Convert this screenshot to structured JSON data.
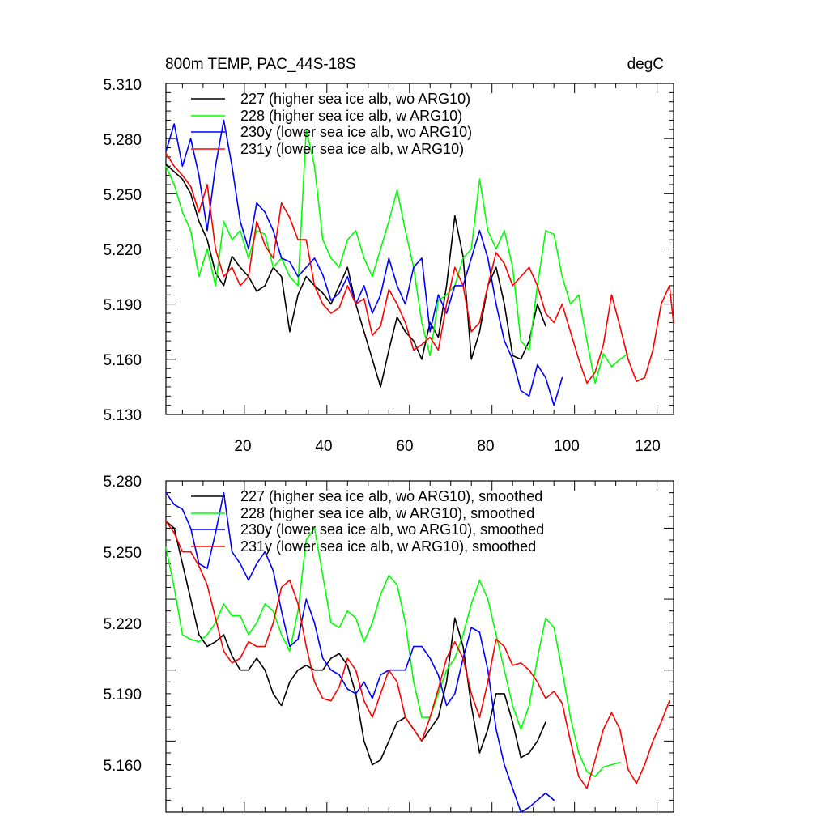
{
  "chart_data": [
    {
      "type": "line",
      "title": "800m TEMP, PAC_44S-18S",
      "units": "degC",
      "xlim": [
        1,
        124
      ],
      "ylim": [
        5.13,
        5.31
      ],
      "xticks": [
        20,
        40,
        60,
        80,
        100,
        120
      ],
      "yticks": [
        "5.310",
        "5.280",
        "5.250",
        "5.220",
        "5.190",
        "5.160",
        "5.130"
      ],
      "series": [
        {
          "name": "227 (higher sea ice alb, wo ARG10)",
          "color": "#000000",
          "x": [
            1,
            3,
            5,
            7,
            9,
            11,
            13,
            15,
            17,
            19,
            21,
            23,
            25,
            27,
            29,
            31,
            33,
            35,
            37,
            39,
            41,
            43,
            45,
            47,
            49,
            51,
            53,
            55,
            57,
            59,
            61,
            63,
            65,
            67,
            69,
            71,
            73,
            75,
            77,
            79,
            81,
            83,
            85,
            87,
            89,
            91,
            93
          ],
          "y": [
            5.266,
            5.262,
            5.258,
            5.25,
            5.235,
            5.225,
            5.207,
            5.2,
            5.216,
            5.21,
            5.205,
            5.197,
            5.2,
            5.21,
            5.205,
            5.175,
            5.195,
            5.205,
            5.2,
            5.196,
            5.19,
            5.2,
            5.21,
            5.19,
            5.175,
            5.16,
            5.145,
            5.165,
            5.183,
            5.175,
            5.17,
            5.16,
            5.18,
            5.172,
            5.2,
            5.238,
            5.216,
            5.16,
            5.175,
            5.2,
            5.21,
            5.19,
            5.162,
            5.16,
            5.17,
            5.19,
            5.178
          ]
        },
        {
          "name": "228 (higher sea ice alb, w ARG10)",
          "color": "#00ff00",
          "x": [
            1,
            3,
            5,
            7,
            9,
            11,
            13,
            15,
            17,
            19,
            21,
            23,
            25,
            27,
            29,
            31,
            33,
            35,
            37,
            39,
            41,
            43,
            45,
            47,
            49,
            51,
            53,
            55,
            57,
            59,
            61,
            63,
            65,
            67,
            69,
            71,
            73,
            75,
            77,
            79,
            81,
            83,
            85,
            87,
            89,
            91,
            93,
            95,
            97,
            99,
            101,
            103,
            105,
            107,
            109,
            111,
            113
          ],
          "y": [
            5.265,
            5.255,
            5.24,
            5.23,
            5.205,
            5.22,
            5.2,
            5.235,
            5.225,
            5.23,
            5.215,
            5.23,
            5.228,
            5.21,
            5.215,
            5.205,
            5.2,
            5.285,
            5.265,
            5.225,
            5.215,
            5.21,
            5.225,
            5.23,
            5.215,
            5.205,
            5.22,
            5.235,
            5.252,
            5.23,
            5.21,
            5.18,
            5.162,
            5.192,
            5.195,
            5.2,
            5.215,
            5.22,
            5.258,
            5.23,
            5.22,
            5.23,
            5.21,
            5.17,
            5.165,
            5.2,
            5.23,
            5.228,
            5.205,
            5.19,
            5.195,
            5.17,
            5.147,
            5.163,
            5.156,
            5.16,
            5.163
          ]
        },
        {
          "name": "230y (lower sea ice alb, wo ARG10)",
          "color": "#0000ff",
          "x": [
            1,
            3,
            5,
            7,
            9,
            11,
            13,
            15,
            17,
            19,
            21,
            23,
            25,
            27,
            29,
            31,
            33,
            35,
            37,
            39,
            41,
            43,
            45,
            47,
            49,
            51,
            53,
            55,
            57,
            59,
            61,
            63,
            65,
            67,
            69,
            71,
            73,
            75,
            77,
            79,
            81,
            83,
            85,
            87,
            89,
            91,
            93,
            95,
            97
          ],
          "y": [
            5.273,
            5.288,
            5.265,
            5.28,
            5.26,
            5.23,
            5.265,
            5.29,
            5.265,
            5.235,
            5.22,
            5.245,
            5.24,
            5.23,
            5.215,
            5.213,
            5.205,
            5.21,
            5.215,
            5.206,
            5.192,
            5.196,
            5.205,
            5.19,
            5.2,
            5.185,
            5.195,
            5.215,
            5.2,
            5.19,
            5.21,
            5.215,
            5.175,
            5.195,
            5.185,
            5.2,
            5.2,
            5.215,
            5.23,
            5.215,
            5.19,
            5.17,
            5.16,
            5.143,
            5.14,
            5.157,
            5.15,
            5.135,
            5.15
          ]
        },
        {
          "name": "231y (lower sea ice alb, w ARG10)",
          "color": "#ff0000",
          "x": [
            1,
            3,
            5,
            7,
            9,
            11,
            13,
            15,
            17,
            19,
            21,
            23,
            25,
            27,
            29,
            31,
            33,
            35,
            37,
            39,
            41,
            43,
            45,
            47,
            49,
            51,
            53,
            55,
            57,
            59,
            61,
            63,
            65,
            67,
            69,
            71,
            73,
            75,
            77,
            79,
            81,
            83,
            85,
            87,
            89,
            91,
            93,
            95,
            97,
            99,
            101,
            103,
            105,
            107,
            109,
            111,
            113,
            115,
            117,
            119,
            121,
            123,
            124
          ],
          "y": [
            5.272,
            5.265,
            5.26,
            5.254,
            5.24,
            5.255,
            5.22,
            5.205,
            5.21,
            5.2,
            5.205,
            5.235,
            5.222,
            5.215,
            5.245,
            5.237,
            5.225,
            5.225,
            5.2,
            5.19,
            5.185,
            5.188,
            5.2,
            5.19,
            5.193,
            5.173,
            5.178,
            5.198,
            5.19,
            5.18,
            5.165,
            5.168,
            5.172,
            5.165,
            5.19,
            5.21,
            5.2,
            5.175,
            5.18,
            5.2,
            5.218,
            5.212,
            5.2,
            5.205,
            5.21,
            5.2,
            5.185,
            5.18,
            5.19,
            5.175,
            5.16,
            5.147,
            5.153,
            5.168,
            5.195,
            5.178,
            5.16,
            5.148,
            5.15,
            5.165,
            5.19,
            5.2,
            5.18
          ]
        }
      ]
    },
    {
      "type": "line",
      "xlim": [
        1,
        124
      ],
      "ylim": [
        5.14,
        5.28
      ],
      "yticks": [
        "5.280",
        "5.250",
        "5.220",
        "5.190",
        "5.160"
      ],
      "series": [
        {
          "name": "227 (higher sea ice alb, wo ARG10), smoothed",
          "color": "#000000",
          "x": [
            1,
            3,
            5,
            7,
            9,
            11,
            13,
            15,
            17,
            19,
            21,
            23,
            25,
            27,
            29,
            31,
            33,
            35,
            37,
            39,
            41,
            43,
            45,
            47,
            49,
            51,
            53,
            55,
            57,
            59,
            61,
            63,
            65,
            67,
            69,
            71,
            73,
            75,
            77,
            79,
            81,
            83,
            85,
            87,
            89,
            91,
            93
          ],
          "y": [
            5.263,
            5.26,
            5.245,
            5.23,
            5.215,
            5.21,
            5.212,
            5.215,
            5.206,
            5.2,
            5.2,
            5.205,
            5.2,
            5.19,
            5.185,
            5.195,
            5.2,
            5.202,
            5.2,
            5.2,
            5.205,
            5.207,
            5.202,
            5.19,
            5.17,
            5.16,
            5.162,
            5.17,
            5.178,
            5.18,
            5.175,
            5.17,
            5.175,
            5.18,
            5.195,
            5.222,
            5.21,
            5.185,
            5.165,
            5.175,
            5.19,
            5.19,
            5.178,
            5.163,
            5.165,
            5.17,
            5.178
          ]
        },
        {
          "name": "228 (higher sea ice alb, w ARG10), smoothed",
          "color": "#00ff00",
          "x": [
            1,
            3,
            5,
            7,
            9,
            11,
            13,
            15,
            17,
            19,
            21,
            23,
            25,
            27,
            29,
            31,
            33,
            35,
            37,
            39,
            41,
            43,
            45,
            47,
            49,
            51,
            53,
            55,
            57,
            59,
            61,
            63,
            65,
            67,
            69,
            71,
            73,
            75,
            77,
            79,
            81,
            83,
            85,
            87,
            89,
            91,
            93,
            95,
            97,
            99,
            101,
            103,
            105,
            107,
            109,
            111
          ],
          "y": [
            5.252,
            5.235,
            5.215,
            5.213,
            5.212,
            5.215,
            5.22,
            5.228,
            5.223,
            5.223,
            5.215,
            5.22,
            5.228,
            5.225,
            5.215,
            5.208,
            5.225,
            5.255,
            5.26,
            5.24,
            5.22,
            5.218,
            5.225,
            5.222,
            5.212,
            5.22,
            5.232,
            5.24,
            5.236,
            5.22,
            5.195,
            5.18,
            5.18,
            5.19,
            5.2,
            5.205,
            5.215,
            5.228,
            5.238,
            5.23,
            5.215,
            5.2,
            5.185,
            5.175,
            5.185,
            5.205,
            5.222,
            5.218,
            5.2,
            5.18,
            5.165,
            5.157,
            5.155,
            5.159,
            5.16,
            5.161
          ]
        },
        {
          "name": "230y (lower sea ice alb, wo ARG10), smoothed",
          "color": "#0000ff",
          "x": [
            1,
            3,
            5,
            7,
            9,
            11,
            13,
            15,
            17,
            19,
            21,
            23,
            25,
            27,
            29,
            31,
            33,
            35,
            37,
            39,
            41,
            43,
            45,
            47,
            49,
            51,
            53,
            55,
            57,
            59,
            61,
            63,
            65,
            67,
            69,
            71,
            73,
            75,
            77,
            79,
            81,
            83,
            85,
            87,
            89,
            91,
            93,
            95
          ],
          "y": [
            5.275,
            5.27,
            5.268,
            5.26,
            5.245,
            5.243,
            5.258,
            5.275,
            5.25,
            5.245,
            5.238,
            5.245,
            5.25,
            5.242,
            5.225,
            5.21,
            5.213,
            5.23,
            5.22,
            5.205,
            5.2,
            5.198,
            5.192,
            5.19,
            5.195,
            5.188,
            5.198,
            5.2,
            5.2,
            5.2,
            5.21,
            5.21,
            5.205,
            5.198,
            5.185,
            5.19,
            5.205,
            5.218,
            5.216,
            5.2,
            5.175,
            5.16,
            5.15,
            5.14,
            5.142,
            5.145,
            5.148,
            5.145
          ]
        },
        {
          "name": "231y (lower sea ice alb, w ARG10), smoothed",
          "color": "#ff0000",
          "x": [
            1,
            3,
            5,
            7,
            9,
            11,
            13,
            15,
            17,
            19,
            21,
            23,
            25,
            27,
            29,
            31,
            33,
            35,
            37,
            39,
            41,
            43,
            45,
            47,
            49,
            51,
            53,
            55,
            57,
            59,
            61,
            63,
            65,
            67,
            69,
            71,
            73,
            75,
            77,
            79,
            81,
            83,
            85,
            87,
            89,
            91,
            93,
            95,
            97,
            99,
            101,
            103,
            105,
            107,
            109,
            111,
            113,
            115,
            117,
            119,
            121,
            123
          ],
          "y": [
            5.263,
            5.258,
            5.25,
            5.25,
            5.244,
            5.236,
            5.222,
            5.208,
            5.203,
            5.205,
            5.212,
            5.21,
            5.21,
            5.22,
            5.235,
            5.238,
            5.228,
            5.21,
            5.195,
            5.188,
            5.187,
            5.193,
            5.205,
            5.2,
            5.187,
            5.18,
            5.19,
            5.2,
            5.195,
            5.18,
            5.175,
            5.17,
            5.18,
            5.192,
            5.205,
            5.212,
            5.205,
            5.19,
            5.18,
            5.195,
            5.213,
            5.21,
            5.202,
            5.203,
            5.2,
            5.195,
            5.188,
            5.191,
            5.186,
            5.17,
            5.155,
            5.15,
            5.162,
            5.175,
            5.182,
            5.175,
            5.158,
            5.152,
            5.16,
            5.17,
            5.178,
            5.187
          ]
        }
      ]
    }
  ]
}
